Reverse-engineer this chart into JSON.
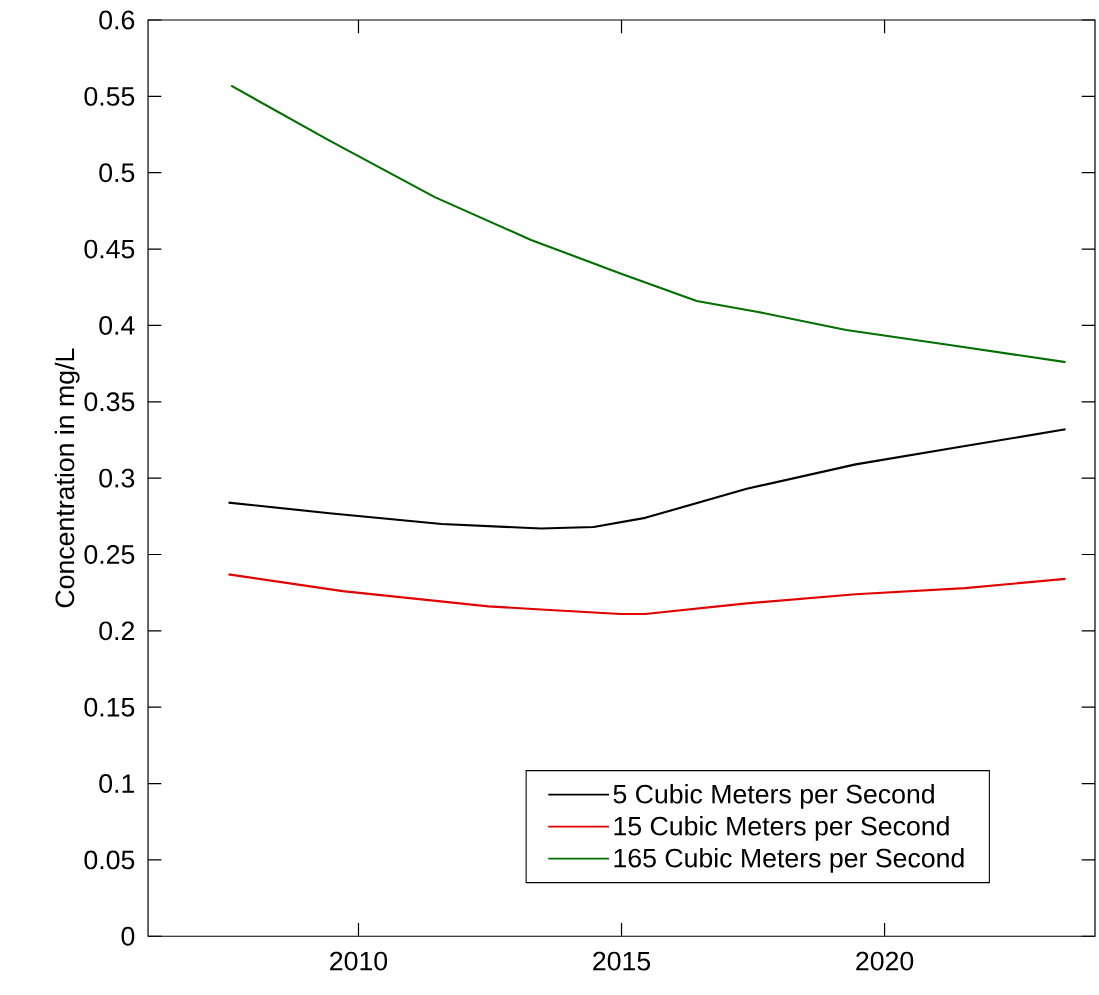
{
  "chart_data": {
    "type": "line",
    "ylabel": "Concentration in mg/L",
    "xlim": [
      2006,
      2024
    ],
    "xticks": [
      2010,
      2015,
      2020
    ],
    "ylim": [
      0,
      0.6
    ],
    "yticks": [
      0,
      0.05,
      0.1,
      0.15,
      0.2,
      0.25,
      0.3,
      0.35,
      0.4,
      0.45,
      0.5,
      0.55,
      0.6
    ],
    "grid": false,
    "legend": "bottom right",
    "marker": "none",
    "line_style": "solid",
    "series": [
      {
        "name": "5 Cubic Meters per Second",
        "color": "#000000",
        "x": [
          2007.53,
          2009.45,
          2011.58,
          2013.47,
          2014.47,
          2015.45,
          2017.38,
          2019.45,
          2021.53,
          2023.44
        ],
        "values": [
          0.284,
          0.277,
          0.27,
          0.267,
          0.268,
          0.274,
          0.293,
          0.309,
          0.321,
          0.332
        ]
      },
      {
        "name": "15 Cubic Meters per Second",
        "color": "#e00000",
        "x": [
          2007.53,
          2009.7,
          2012.47,
          2013.47,
          2014.98,
          2015.45,
          2017.38,
          2019.45,
          2021.53,
          2023.44
        ],
        "values": [
          0.237,
          0.226,
          0.216,
          0.214,
          0.211,
          0.211,
          0.218,
          0.224,
          0.228,
          0.234
        ]
      },
      {
        "name": "165 Cubic Meters per Second",
        "color": "#007000",
        "x": [
          2007.58,
          2009.45,
          2011.45,
          2013.28,
          2014.98,
          2016.43,
          2017.57,
          2019.27,
          2021.27,
          2023.44
        ],
        "values": [
          0.557,
          0.521,
          0.484,
          0.456,
          0.434,
          0.416,
          0.409,
          0.397,
          0.387,
          0.376
        ]
      }
    ]
  }
}
